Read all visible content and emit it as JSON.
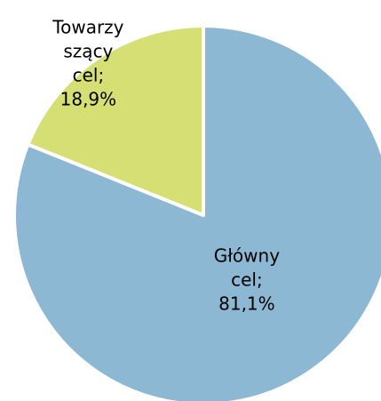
{
  "chart_data": {
    "type": "pie",
    "title": "",
    "slices": [
      {
        "name": "Główny cel",
        "value": 81.1,
        "color": "#8cb8d4",
        "label_lines": [
          "Główny",
          "cel;",
          "81,1%"
        ]
      },
      {
        "name": "Towarzyszący cel",
        "value": 18.9,
        "color": "#d6df73",
        "label_lines": [
          "Towarzy",
          "szący",
          "cel;",
          "18,9%"
        ]
      }
    ],
    "start_angle": "12 o'clock",
    "direction": "clockwise",
    "slice_border_color": "#ffffff"
  }
}
